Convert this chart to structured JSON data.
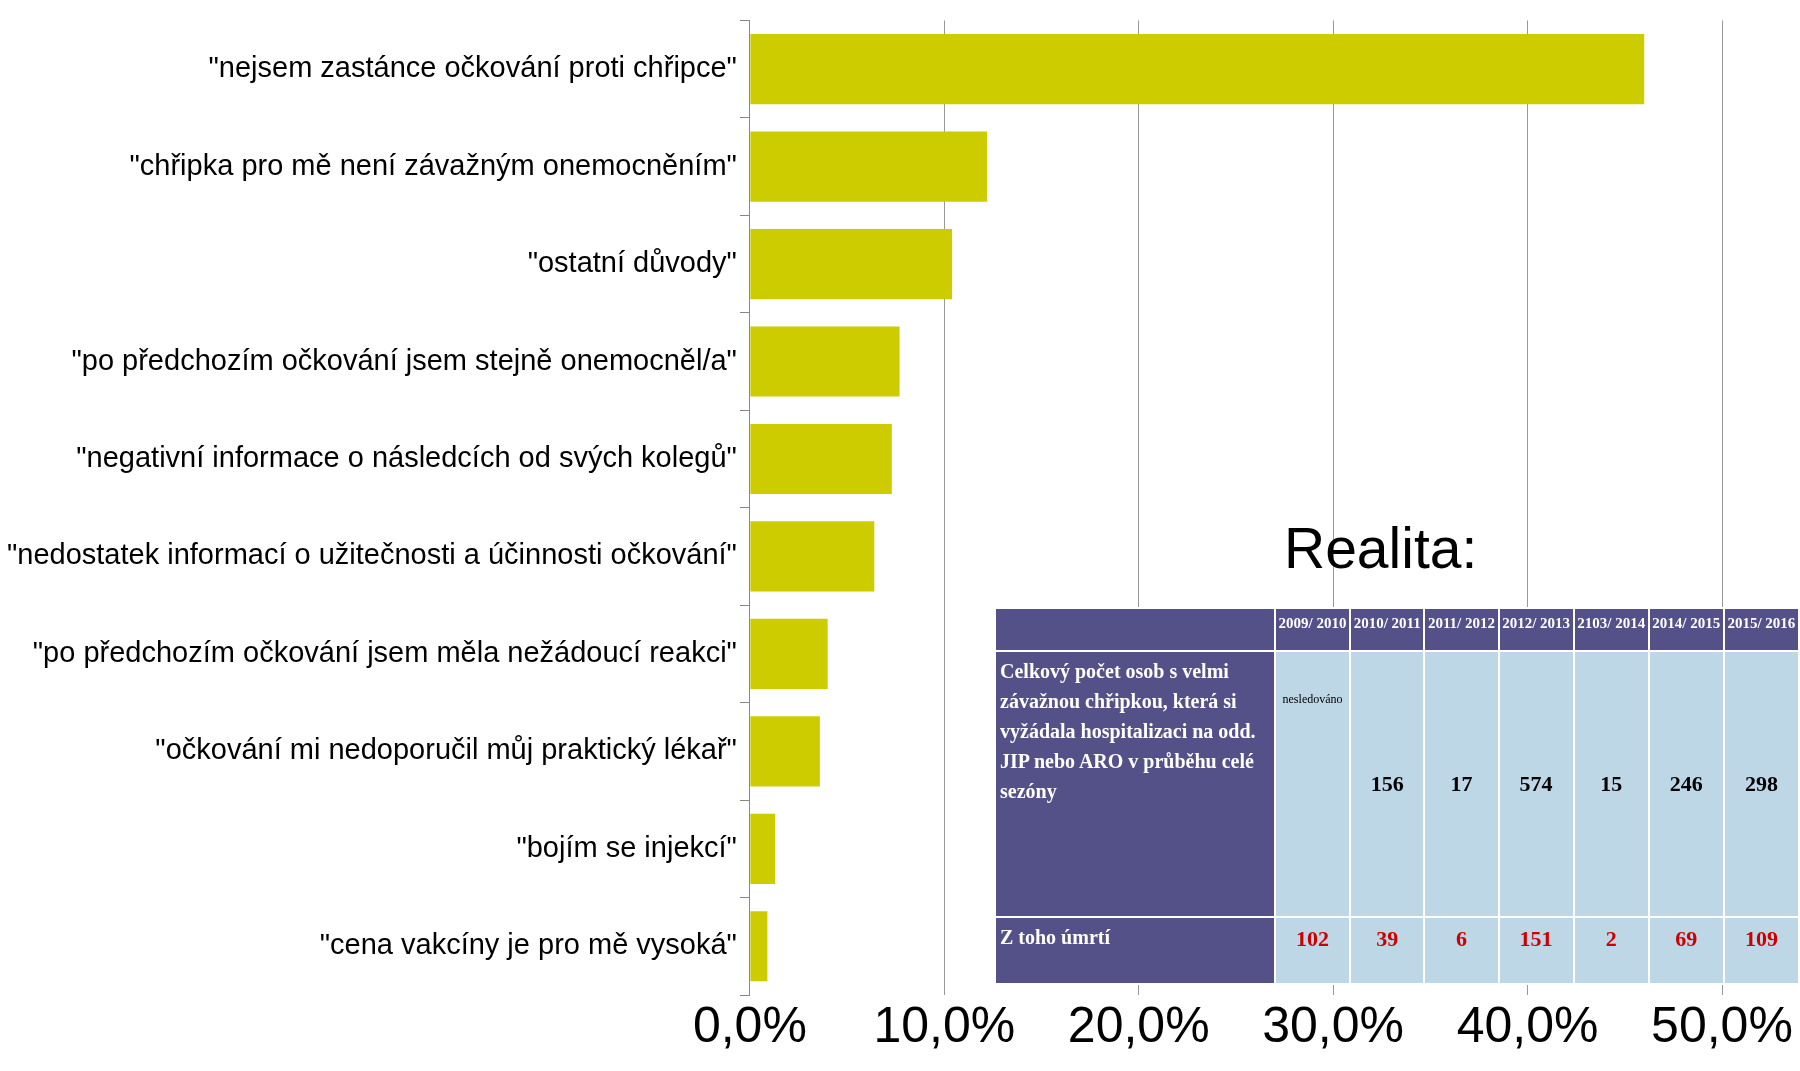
{
  "chart_data": [
    {
      "type": "bar",
      "orientation": "horizontal",
      "categories": [
        "\"nejsem zastánce očkování proti chřipce\"",
        "\"chřipka pro mě není závažným onemocněním\"",
        "\"ostatní důvody\"",
        "\"po předchozím očkování jsem stejně onemocněl/a\"",
        "\"negativní informace o následcích od svých kolegů\"",
        "\"nedostatek informací o užitečnosti a účinnosti očkování\"",
        "\"po předchozím očkování jsem měla nežádoucí reakci\"",
        "\"očkování mi nedoporučil můj praktický lékař\"",
        "\"bojím se injekcí\"",
        "\"cena vakcíny je pro mě vysoká\""
      ],
      "values": [
        46.0,
        12.2,
        10.4,
        7.7,
        7.3,
        6.4,
        4.0,
        3.6,
        1.3,
        0.9
      ],
      "color": "#cccc00",
      "xlim": [
        0,
        50
      ],
      "xticks": [
        {
          "value": 0,
          "label": "0,0%"
        },
        {
          "value": 10,
          "label": "10,0%"
        },
        {
          "value": 20,
          "label": "20,0%"
        },
        {
          "value": 30,
          "label": "30,0%"
        },
        {
          "value": 40,
          "label": "40,0%"
        },
        {
          "value": 50,
          "label": "50,0%"
        }
      ],
      "grid": "x",
      "legend": false
    },
    {
      "type": "other",
      "title": "Realita:",
      "annotations": [
        "2009/ 2010",
        "2010/ 2011",
        "2011/ 2012",
        "2012/ 2013",
        "2103/ 2014",
        "2014/ 2015",
        "2015/ 2016",
        "Celkový počet osob s velmi závažnou chřipkou, která si vyžádala hospitalizaci na odd. JIP nebo ARO v průběhu celé sezóny",
        "nesledováno",
        "156",
        "17",
        "574",
        "15",
        "246",
        "298",
        "Z toho úmrtí",
        "102",
        "39",
        "6",
        "151",
        "2",
        "69",
        "109"
      ]
    }
  ]
}
